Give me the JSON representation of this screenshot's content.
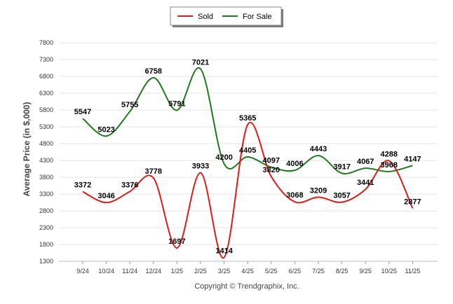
{
  "chart_data": {
    "type": "line",
    "title": "",
    "xlabel": "",
    "ylabel": "Average Price (in $,000)",
    "ylim": [
      1300,
      7800
    ],
    "yticks": [
      1300,
      1800,
      2300,
      2800,
      3300,
      3800,
      4300,
      4800,
      5300,
      5800,
      6300,
      6800,
      7300,
      7800
    ],
    "categories": [
      "9/24",
      "10/24",
      "11/24",
      "12/24",
      "1/25",
      "2/25",
      "3/25",
      "4/25",
      "5/25",
      "6/25",
      "7/25",
      "8/25",
      "9/25",
      "10/25",
      "11/25"
    ],
    "series": [
      {
        "name": "Sold",
        "color": "#e01b1b",
        "values": [
          3372,
          3046,
          3376,
          3778,
          1697,
          3933,
          1414,
          5365,
          3820,
          3068,
          3209,
          3057,
          3441,
          4288,
          2877
        ]
      },
      {
        "name": "For Sale",
        "color": "#1f7a1f",
        "values": [
          5547,
          5023,
          5755,
          6758,
          5791,
          7021,
          4200,
          4405,
          4097,
          4006,
          4443,
          3917,
          4067,
          3968,
          4147
        ]
      }
    ],
    "legend": {
      "position": "top-center",
      "items": [
        "Sold",
        "For Sale"
      ]
    },
    "grid": true,
    "credit": "Copyright © Trendgraphix, Inc."
  }
}
